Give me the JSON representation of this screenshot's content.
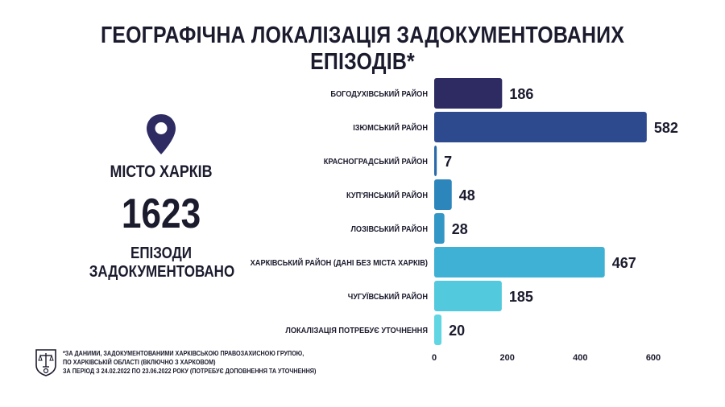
{
  "title": "ГЕОГРАФІЧНА ЛОКАЛІЗАЦІЯ ЗАДОКУМЕНТОВАНИХ ЕПІЗОДІВ*",
  "highlight": {
    "icon": "map-pin-icon",
    "city": "МІСТО ХАРКІВ",
    "count": "1623",
    "caption_line1": "ЕПІЗОДИ",
    "caption_line2": "ЗАДОКУМЕНТОВАНО"
  },
  "chart_data": {
    "type": "bar",
    "orientation": "horizontal",
    "categories": [
      "БОГОДУХІВСЬКИЙ РАЙОН",
      "ІЗЮМСЬКИЙ РАЙОН",
      "КРАСНОГРАДСЬКИЙ РАЙОН",
      "КУП'ЯНСЬКИЙ РАЙОН",
      "ЛОЗІВСЬКИЙ РАЙОН",
      "ХАРКІВСЬКИЙ РАЙОН (ДАНІ БЕЗ МІСТА ХАРКІВ)",
      "ЧУГУЇВСЬКИЙ РАЙОН",
      "ЛОКАЛІЗАЦІЯ ПОТРЕБУЄ УТОЧНЕННЯ"
    ],
    "values": [
      186,
      582,
      7,
      48,
      28,
      467,
      185,
      20
    ],
    "colors": [
      "#2e2b63",
      "#2d4a8e",
      "#2b6aa8",
      "#2d86bb",
      "#3397c6",
      "#3fb1d4",
      "#52c9dc",
      "#5fd6e2"
    ],
    "xlim": [
      0,
      600
    ],
    "xticks": [
      "0",
      "200",
      "400",
      "600"
    ],
    "grid": false
  },
  "footer": {
    "emblem_icon": "scales-emblem-icon",
    "lines": [
      "*ЗА ДАНИМИ, ЗАДОКУМЕНТОВАНИМИ ХАРКІВСЬКОЮ ПРАВОЗАХИСНОЮ ГРУПОЮ,",
      "ПО ХАРКІВСЬКІЙ ОБЛАСТІ (ВКЛЮЧНО З ХАРКОВОМ)",
      "ЗА ПЕРІОД З 24.02.2022 ПО 23.06.2022 РОКУ (ПОТРЕБУЄ ДОПОВНЕННЯ ТА УТОЧНЕННЯ)"
    ]
  }
}
